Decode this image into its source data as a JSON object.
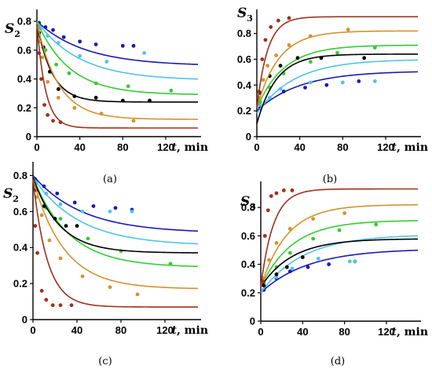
{
  "colors": {
    "blue": "#1a1ab4",
    "skyblue": "#4fc3e8",
    "green": "#33cc33",
    "black": "#000000",
    "orange": "#d4922e",
    "brown": "#a0301c"
  },
  "chart_data": [
    {
      "type": "line",
      "panel_label": "(a)",
      "ylabel": "S",
      "ylabel_sub": "2",
      "xlabel": "t, min",
      "xlim": [
        0,
        150
      ],
      "ylim": [
        0,
        0.85
      ],
      "xticks": [
        0,
        40,
        80,
        120
      ],
      "yticks": [
        0,
        0.2,
        0.4,
        0.6,
        0.8
      ],
      "ytick_labels": [
        "0",
        "0.2",
        "0.4",
        "0.6",
        "0.8"
      ],
      "series": [
        {
          "color": "blue",
          "curve": {
            "start": 0.8,
            "end": 0.49,
            "tau": 45
          },
          "points": [
            [
              2,
              0.79
            ],
            [
              8,
              0.76
            ],
            [
              15,
              0.74
            ],
            [
              25,
              0.69
            ],
            [
              40,
              0.66
            ],
            [
              55,
              0.64
            ],
            [
              80,
              0.63
            ],
            [
              90,
              0.63
            ]
          ]
        },
        {
          "color": "skyblue",
          "curve": {
            "start": 0.8,
            "end": 0.39,
            "tau": 40
          },
          "points": [
            [
              3,
              0.75
            ],
            [
              10,
              0.7
            ],
            [
              20,
              0.65
            ],
            [
              40,
              0.56
            ],
            [
              65,
              0.52
            ],
            [
              100,
              0.58
            ]
          ]
        },
        {
          "color": "green",
          "curve": {
            "start": 0.8,
            "end": 0.29,
            "tau": 30
          },
          "points": [
            [
              2,
              0.7
            ],
            [
              8,
              0.6
            ],
            [
              18,
              0.5
            ],
            [
              30,
              0.44
            ],
            [
              55,
              0.37
            ],
            [
              85,
              0.35
            ],
            [
              125,
              0.32
            ]
          ]
        },
        {
          "color": "black",
          "curve": {
            "start": 0.79,
            "end": 0.24,
            "tau": 14
          },
          "points": [
            [
              2,
              0.72
            ],
            [
              6,
              0.62
            ],
            [
              12,
              0.45
            ],
            [
              20,
              0.33
            ],
            [
              35,
              0.28
            ],
            [
              55,
              0.27
            ],
            [
              80,
              0.25
            ],
            [
              105,
              0.25
            ]
          ]
        },
        {
          "color": "orange",
          "curve": {
            "start": 0.79,
            "end": 0.12,
            "tau": 20
          },
          "points": [
            [
              2,
              0.66
            ],
            [
              5,
              0.55
            ],
            [
              10,
              0.38
            ],
            [
              20,
              0.27
            ],
            [
              35,
              0.2
            ],
            [
              60,
              0.16
            ],
            [
              90,
              0.11
            ]
          ]
        },
        {
          "color": "brown",
          "curve": {
            "start": 0.78,
            "end": 0.06,
            "tau": 8
          },
          "points": [
            [
              2,
              0.58
            ],
            [
              4,
              0.4
            ],
            [
              7,
              0.22
            ],
            [
              10,
              0.15
            ],
            [
              15,
              0.11
            ],
            [
              22,
              0.1
            ]
          ]
        }
      ]
    },
    {
      "type": "line",
      "panel_label": "(b)",
      "ylabel": "S",
      "ylabel_sub": "3",
      "xlabel": "t, min",
      "xlim": [
        0,
        150
      ],
      "ylim": [
        0,
        0.95
      ],
      "xticks": [
        0,
        40,
        80,
        120
      ],
      "yticks": [
        0,
        0.2,
        0.4,
        0.6,
        0.8
      ],
      "ytick_labels": [
        "0",
        "0.2",
        "0.4",
        "0.6",
        "0.8"
      ],
      "series": [
        {
          "color": "blue",
          "curve": {
            "start": 0.2,
            "end": 0.51,
            "tau": 40
          },
          "points": [
            [
              3,
              0.22
            ],
            [
              12,
              0.3
            ],
            [
              25,
              0.35
            ],
            [
              45,
              0.38
            ],
            [
              65,
              0.4
            ],
            [
              95,
              0.43
            ]
          ]
        },
        {
          "color": "skyblue",
          "curve": {
            "start": 0.18,
            "end": 0.6,
            "tau": 35
          },
          "points": [
            [
              3,
              0.25
            ],
            [
              12,
              0.3
            ],
            [
              22,
              0.37
            ],
            [
              50,
              0.42
            ],
            [
              80,
              0.42
            ],
            [
              110,
              0.43
            ]
          ]
        },
        {
          "color": "green",
          "curve": {
            "start": 0.22,
            "end": 0.71,
            "tau": 25
          },
          "points": [
            [
              3,
              0.27
            ],
            [
              12,
              0.38
            ],
            [
              25,
              0.49
            ],
            [
              50,
              0.58
            ],
            [
              75,
              0.65
            ],
            [
              110,
              0.69
            ]
          ]
        },
        {
          "color": "black",
          "curve": {
            "start": 0.1,
            "end": 0.64,
            "tau": 18
          },
          "points": [
            [
              3,
              0.34
            ],
            [
              12,
              0.47
            ],
            [
              22,
              0.55
            ],
            [
              38,
              0.61
            ],
            [
              60,
              0.61
            ],
            [
              100,
              0.61
            ]
          ]
        },
        {
          "color": "orange",
          "curve": {
            "start": 0.22,
            "end": 0.82,
            "tau": 20
          },
          "points": [
            [
              2,
              0.3
            ],
            [
              6,
              0.44
            ],
            [
              10,
              0.55
            ],
            [
              18,
              0.63
            ],
            [
              30,
              0.71
            ],
            [
              50,
              0.78
            ],
            [
              85,
              0.83
            ]
          ]
        },
        {
          "color": "brown",
          "curve": {
            "start": 0.22,
            "end": 0.93,
            "tau": 10
          },
          "points": [
            [
              2,
              0.35
            ],
            [
              5,
              0.6
            ],
            [
              8,
              0.75
            ],
            [
              13,
              0.85
            ],
            [
              20,
              0.9
            ],
            [
              30,
              0.92
            ]
          ]
        }
      ]
    },
    {
      "type": "line",
      "panel_label": "(c)",
      "ylabel": "S",
      "ylabel_sub": "2",
      "xlabel": "t, min",
      "xlim": [
        0,
        150
      ],
      "ylim": [
        0,
        0.85
      ],
      "xticks": [
        0,
        40,
        80,
        120
      ],
      "yticks": [
        0,
        0.2,
        0.4,
        0.6,
        0.8
      ],
      "ytick_labels": [
        "0",
        "0.2",
        "0.4",
        "0.6",
        "0.8"
      ],
      "series": [
        {
          "color": "blue",
          "curve": {
            "start": 0.8,
            "end": 0.48,
            "tau": 45
          },
          "points": [
            [
              2,
              0.78
            ],
            [
              10,
              0.74
            ],
            [
              22,
              0.7
            ],
            [
              38,
              0.65
            ],
            [
              55,
              0.63
            ],
            [
              75,
              0.62
            ],
            [
              90,
              0.61
            ]
          ]
        },
        {
          "color": "skyblue",
          "curve": {
            "start": 0.79,
            "end": 0.41,
            "tau": 42
          },
          "points": [
            [
              3,
              0.76
            ],
            [
              12,
              0.7
            ],
            [
              25,
              0.64
            ],
            [
              45,
              0.6
            ],
            [
              70,
              0.6
            ],
            [
              90,
              0.6
            ]
          ]
        },
        {
          "color": "green",
          "curve": {
            "start": 0.79,
            "end": 0.29,
            "tau": 33
          },
          "points": [
            [
              3,
              0.72
            ],
            [
              12,
              0.62
            ],
            [
              25,
              0.56
            ],
            [
              50,
              0.45
            ],
            [
              80,
              0.38
            ],
            [
              125,
              0.31
            ]
          ]
        },
        {
          "color": "black",
          "curve": {
            "start": 0.79,
            "end": 0.37,
            "tau": 24
          },
          "points": [
            [
              3,
              0.72
            ],
            [
              10,
              0.63
            ],
            [
              20,
              0.56
            ],
            [
              30,
              0.52
            ],
            [
              40,
              0.52
            ]
          ]
        },
        {
          "color": "orange",
          "curve": {
            "start": 0.78,
            "end": 0.17,
            "tau": 28
          },
          "points": [
            [
              3,
              0.68
            ],
            [
              8,
              0.58
            ],
            [
              15,
              0.44
            ],
            [
              25,
              0.34
            ],
            [
              45,
              0.24
            ],
            [
              70,
              0.18
            ],
            [
              95,
              0.14
            ]
          ]
        },
        {
          "color": "brown",
          "curve": {
            "start": 0.78,
            "end": 0.07,
            "tau": 13
          },
          "points": [
            [
              2,
              0.52
            ],
            [
              4,
              0.37
            ],
            [
              8,
              0.16
            ],
            [
              12,
              0.11
            ],
            [
              18,
              0.08
            ],
            [
              25,
              0.08
            ],
            [
              35,
              0.08
            ]
          ]
        }
      ]
    },
    {
      "type": "line",
      "panel_label": "(d)",
      "ylabel": "S",
      "ylabel_sub": "3",
      "xlabel": "t, min",
      "xlim": [
        0,
        150
      ],
      "ylim": [
        0,
        0.95
      ],
      "xticks": [
        0,
        40,
        80,
        120
      ],
      "yticks": [
        0,
        0.2,
        0.4,
        0.6,
        0.8
      ],
      "ytick_labels": [
        "0",
        "0.2",
        "0.4",
        "0.6",
        "0.8"
      ],
      "series": [
        {
          "color": "blue",
          "curve": {
            "start": 0.2,
            "end": 0.51,
            "tau": 45
          },
          "points": [
            [
              3,
              0.22
            ],
            [
              15,
              0.3
            ],
            [
              28,
              0.35
            ],
            [
              45,
              0.38
            ],
            [
              65,
              0.4
            ],
            [
              90,
              0.42
            ]
          ]
        },
        {
          "color": "skyblue",
          "curve": {
            "start": 0.2,
            "end": 0.61,
            "tau": 40
          },
          "points": [
            [
              3,
              0.25
            ],
            [
              15,
              0.31
            ],
            [
              30,
              0.37
            ],
            [
              55,
              0.44
            ],
            [
              85,
              0.42
            ],
            [
              90,
              0.42
            ]
          ]
        },
        {
          "color": "green",
          "curve": {
            "start": 0.24,
            "end": 0.71,
            "tau": 30
          },
          "points": [
            [
              3,
              0.27
            ],
            [
              15,
              0.38
            ],
            [
              28,
              0.48
            ],
            [
              50,
              0.58
            ],
            [
              75,
              0.64
            ],
            [
              110,
              0.68
            ]
          ]
        },
        {
          "color": "black",
          "curve": {
            "start": 0.24,
            "end": 0.58,
            "tau": 30
          },
          "points": [
            [
              3,
              0.25
            ],
            [
              15,
              0.33
            ],
            [
              25,
              0.38
            ],
            [
              40,
              0.45
            ]
          ]
        },
        {
          "color": "orange",
          "curve": {
            "start": 0.24,
            "end": 0.82,
            "tau": 25
          },
          "points": [
            [
              3,
              0.3
            ],
            [
              8,
              0.43
            ],
            [
              15,
              0.55
            ],
            [
              28,
              0.65
            ],
            [
              50,
              0.72
            ],
            [
              80,
              0.76
            ]
          ]
        },
        {
          "color": "brown",
          "curve": {
            "start": 0.24,
            "end": 0.93,
            "tau": 12
          },
          "points": [
            [
              2,
              0.28
            ],
            [
              4,
              0.6
            ],
            [
              7,
              0.78
            ],
            [
              10,
              0.88
            ],
            [
              15,
              0.9
            ],
            [
              22,
              0.92
            ],
            [
              30,
              0.92
            ]
          ]
        }
      ]
    }
  ]
}
